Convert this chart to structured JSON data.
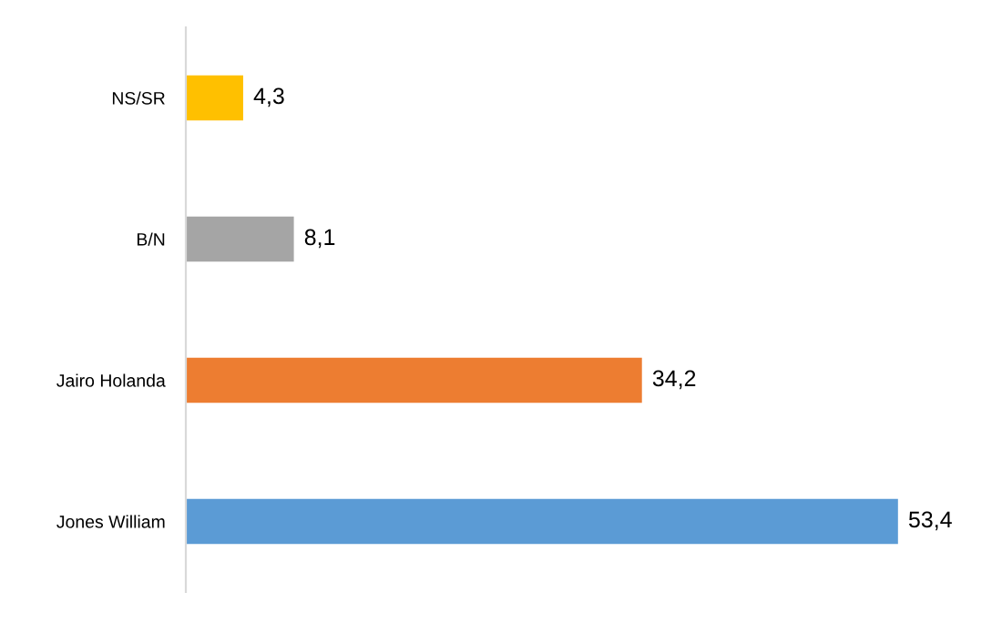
{
  "chart_data": {
    "type": "bar",
    "orientation": "horizontal",
    "categories": [
      "NS/SR",
      "B/N",
      "Jairo Holanda",
      "Jones William"
    ],
    "values": [
      4.3,
      8.1,
      34.2,
      53.4
    ],
    "value_labels": [
      "4,3",
      "8,1",
      "34,2",
      "53,4"
    ],
    "colors": [
      "#ffc000",
      "#a5a5a5",
      "#ed7d31",
      "#5b9bd5"
    ],
    "tick_labels": "y",
    "grid": false,
    "legend": false
  }
}
